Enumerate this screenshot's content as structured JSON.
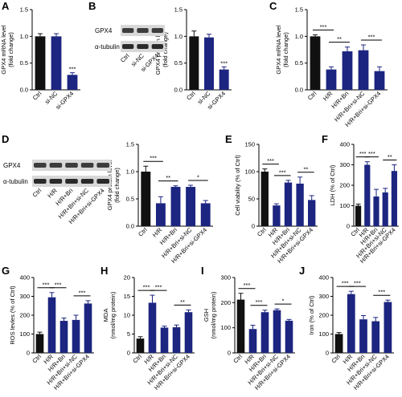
{
  "chart_data": [
    {
      "type": "bar",
      "label": "A",
      "ylabel": [
        "GPX4 mRNA level",
        "(fold change)"
      ],
      "categories": [
        "Ctrl",
        "si-NC",
        "si-GPX4"
      ],
      "values": [
        1.0,
        1.0,
        0.28
      ],
      "errors": [
        0.05,
        0.05,
        0.04
      ],
      "colors": [
        "#111111",
        "#1c2580",
        "#1c2580"
      ],
      "ylim": [
        0,
        1.5
      ],
      "yticks": [
        {
          "value": 0,
          "label": "0.0"
        },
        0.5,
        {
          "value": 1,
          "label": "1.0"
        },
        1.5
      ],
      "annotations": [
        {
          "label": "***",
          "between": [
            "si-GPX4"
          ]
        }
      ]
    },
    {
      "type": "bar",
      "label": "B",
      "ylabel": [
        "GPX4 protein level",
        "(fold change)"
      ],
      "categories": [
        "Ctrl",
        "si-NC",
        "si-GPX4"
      ],
      "values": [
        1.0,
        0.98,
        0.38
      ],
      "errors": [
        0.1,
        0.06,
        0.05
      ],
      "colors": [
        "#111111",
        "#1c2580",
        "#1c2580"
      ],
      "ylim": [
        0,
        1.5
      ],
      "yticks": [
        {
          "value": 0,
          "label": "0.0"
        },
        0.5,
        {
          "value": 1,
          "label": "1.0"
        },
        1.5
      ],
      "annotations": [
        {
          "label": "***",
          "between": [
            "si-GPX4"
          ]
        }
      ]
    },
    {
      "type": "bar",
      "label": "C",
      "ylabel": [
        "GPX4 mRNA level",
        "(fold change)"
      ],
      "categories": [
        "Ctrl",
        "H/R",
        "H/R+Bri",
        "H/R+Bri+si-NC",
        "H/R+Bri+si-GPX4"
      ],
      "values": [
        1.0,
        0.38,
        0.72,
        0.74,
        0.35
      ],
      "errors": [
        0.03,
        0.05,
        0.08,
        0.1,
        0.08
      ],
      "colors": [
        "#111111",
        "#1c2580",
        "#1c2580",
        "#1c2580",
        "#1c2580"
      ],
      "ylim": [
        0,
        1.5
      ],
      "yticks": [
        {
          "value": 0,
          "label": "0.0"
        },
        0.5,
        {
          "value": 1,
          "label": "1.0"
        },
        1.5
      ],
      "annotations": [
        {
          "label": "***",
          "between": [
            "Ctrl",
            "H/R"
          ]
        },
        {
          "label": "**",
          "between": [
            "H/R",
            "H/R+Bri"
          ]
        },
        {
          "label": "***",
          "between": [
            "H/R+Bri+si-NC",
            "H/R+Bri+si-GPX4"
          ]
        }
      ]
    },
    {
      "type": "bar",
      "label": "D",
      "ylabel": [
        "GPX4 protein level",
        "(fold change)"
      ],
      "categories": [
        "Ctrl",
        "H/R",
        "H/R+Bri",
        "H/R+Bri+si-NC",
        "H/R+Bri+si-GPX4"
      ],
      "values": [
        1.0,
        0.42,
        0.72,
        0.72,
        0.42
      ],
      "errors": [
        0.1,
        0.12,
        0.02,
        0.03,
        0.05
      ],
      "colors": [
        "#111111",
        "#1c2580",
        "#1c2580",
        "#1c2580",
        "#1c2580"
      ],
      "ylim": [
        0,
        1.5
      ],
      "yticks": [
        {
          "value": 0,
          "label": "0.0"
        },
        0.5,
        {
          "value": 1,
          "label": "1.0"
        },
        1.5
      ],
      "annotations": [
        {
          "label": "***",
          "between": [
            "Ctrl",
            "H/R"
          ]
        },
        {
          "label": "**",
          "between": [
            "H/R",
            "H/R+Bri"
          ]
        },
        {
          "label": "*",
          "between": [
            "H/R+Bri+si-NC",
            "H/R+Bri+si-GPX4"
          ]
        }
      ]
    },
    {
      "type": "bar",
      "label": "E",
      "ylabel": [
        "Cell viability (% of Ctrl)"
      ],
      "categories": [
        "Ctrl",
        "H/R",
        "H/R+Bri",
        "H/R+Bri+si-NC",
        "H/R+Bri+si-GPX4"
      ],
      "values": [
        100,
        38,
        80,
        78,
        48
      ],
      "errors": [
        5,
        3,
        4,
        12,
        8
      ],
      "colors": [
        "#111111",
        "#1c2580",
        "#1c2580",
        "#1c2580",
        "#1c2580"
      ],
      "ylim": [
        0,
        150
      ],
      "yticks": [
        0,
        50,
        100,
        150
      ],
      "annotations": [
        {
          "label": "***",
          "between": [
            "Ctrl",
            "H/R"
          ]
        },
        {
          "label": "***",
          "between": [
            "H/R",
            "H/R+Bri"
          ]
        },
        {
          "label": "**",
          "between": [
            "H/R+Bri+si-NC",
            "H/R+Bri+si-GPX4"
          ]
        }
      ]
    },
    {
      "type": "bar",
      "label": "F",
      "ylabel": [
        "LDH (% of Ctrl)"
      ],
      "categories": [
        "Ctrl",
        "H/R",
        "H/R+Bri",
        "H/R+Bri+si-NC",
        "H/R+Bri+si-GPX4"
      ],
      "values": [
        100,
        300,
        145,
        165,
        270
      ],
      "errors": [
        8,
        15,
        35,
        20,
        30
      ],
      "colors": [
        "#111111",
        "#1c2580",
        "#1c2580",
        "#1c2580",
        "#1c2580"
      ],
      "ylim": [
        0,
        400
      ],
      "yticks": [
        0,
        100,
        200,
        300,
        400
      ],
      "annotations": [
        {
          "label": "***",
          "between": [
            "Ctrl",
            "H/R"
          ]
        },
        {
          "label": "***",
          "between": [
            "H/R",
            "H/R+Bri"
          ]
        },
        {
          "label": "**",
          "between": [
            "H/R+Bri+si-NC",
            "H/R+Bri+si-GPX4"
          ]
        }
      ]
    },
    {
      "type": "bar",
      "label": "G",
      "ylabel": [
        "ROS levles (% of Ctrl)"
      ],
      "categories": [
        "Ctrl",
        "H/R",
        "H/R+Bri",
        "H/R+Bri+si-NC",
        "H/R+Bri+si-GPX4"
      ],
      "values": [
        100,
        295,
        170,
        175,
        262
      ],
      "errors": [
        10,
        25,
        15,
        25,
        15
      ],
      "colors": [
        "#111111",
        "#1c2580",
        "#1c2580",
        "#1c2580",
        "#1c2580"
      ],
      "ylim": [
        0,
        400
      ],
      "yticks": [
        0,
        100,
        200,
        300,
        400
      ],
      "annotations": [
        {
          "label": "***",
          "between": [
            "Ctrl",
            "H/R"
          ]
        },
        {
          "label": "***",
          "between": [
            "H/R",
            "H/R+Bri"
          ]
        },
        {
          "label": "***",
          "between": [
            "H/R+Bri+si-NC",
            "H/R+Bri+si-GPX4"
          ]
        }
      ]
    },
    {
      "type": "bar",
      "label": "H",
      "ylabel": [
        "MDA",
        "(nmol/mg protein)"
      ],
      "categories": [
        "Ctrl",
        "H/R",
        "H/R+Bri",
        "H/R+Bri+si-NC",
        "H/R+Bri+si-GPX4"
      ],
      "values": [
        3.8,
        13.3,
        6.7,
        6.8,
        10.8
      ],
      "errors": [
        0.5,
        2,
        0.4,
        0.6,
        0.6
      ],
      "colors": [
        "#111111",
        "#1c2580",
        "#1c2580",
        "#1c2580",
        "#1c2580"
      ],
      "ylim": [
        0,
        20
      ],
      "yticks": [
        0,
        5,
        10,
        15,
        20
      ],
      "annotations": [
        {
          "label": "***",
          "between": [
            "Ctrl",
            "H/R"
          ]
        },
        {
          "label": "***",
          "between": [
            "H/R",
            "H/R+Bri"
          ]
        },
        {
          "label": "**",
          "between": [
            "H/R+Bri+si-NC",
            "H/R+Bri+si-GPX4"
          ]
        }
      ]
    },
    {
      "type": "bar",
      "label": "I",
      "ylabel": [
        "GSH",
        "(nmol/mg protein)"
      ],
      "categories": [
        "Ctrl",
        "H/R",
        "H/R+Bri",
        "H/R+Bri+si-NC",
        "H/R+Bri+si-GPX4"
      ],
      "values": [
        212,
        95,
        162,
        170,
        128
      ],
      "errors": [
        25,
        15,
        8,
        5,
        5
      ],
      "colors": [
        "#111111",
        "#1c2580",
        "#1c2580",
        "#1c2580",
        "#1c2580"
      ],
      "ylim": [
        0,
        300
      ],
      "yticks": [
        0,
        100,
        200,
        300
      ],
      "annotations": [
        {
          "label": "***",
          "between": [
            "Ctrl",
            "H/R"
          ]
        },
        {
          "label": "***",
          "between": [
            "H/R",
            "H/R+Bri"
          ]
        },
        {
          "label": "*",
          "between": [
            "H/R+Bri+si-NC",
            "H/R+Bri+si-GPX4"
          ]
        }
      ]
    },
    {
      "type": "bar",
      "label": "J",
      "ylabel": [
        "Iron (% of Ctrl)"
      ],
      "categories": [
        "Ctrl",
        "H/R",
        "H/R+Bri",
        "H/R+Bri+si-NC",
        "H/R+Bri+si-GPX4"
      ],
      "values": [
        100,
        312,
        178,
        168,
        270
      ],
      "errors": [
        8,
        15,
        20,
        20,
        10
      ],
      "colors": [
        "#111111",
        "#1c2580",
        "#1c2580",
        "#1c2580",
        "#1c2580"
      ],
      "ylim": [
        0,
        400
      ],
      "yticks": [
        0,
        100,
        200,
        300,
        400
      ],
      "annotations": [
        {
          "label": "***",
          "between": [
            "Ctrl",
            "H/R"
          ]
        },
        {
          "label": "***",
          "between": [
            "H/R",
            "H/R+Bri"
          ]
        },
        {
          "label": "***",
          "between": [
            "H/R+Bri+si-NC",
            "H/R+Bri+si-GPX4"
          ]
        }
      ]
    }
  ],
  "blots": [
    {
      "proteins": [
        "GPX4",
        "α-tubulin"
      ],
      "lanes": [
        "Ctrl",
        "si-NC",
        "si-GPX4"
      ]
    },
    {
      "proteins": [
        "GPX4",
        "α-tubulin"
      ],
      "lanes": [
        "Ctrl",
        "H/R",
        "H/R+Bri",
        "H/R+Bri+si-NC",
        "H/R+Bri+si-GPX4"
      ]
    }
  ]
}
